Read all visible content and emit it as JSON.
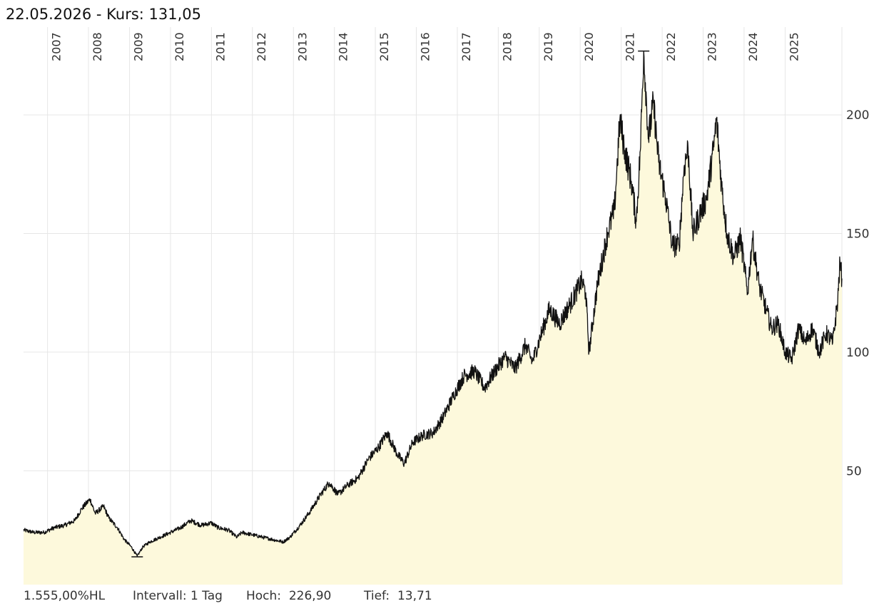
{
  "header": {
    "date": "22.05.2026",
    "kurs_label": " - Kurs: ",
    "kurs_value": "131,05"
  },
  "footer": {
    "performance": "1.555,00%HL",
    "interval": "Intervall: 1 Tag",
    "high_label": "Hoch:",
    "high_value": "226,90",
    "low_label": "Tief:",
    "low_value": "13,71"
  },
  "colors": {
    "line": "#111111",
    "fill": "#fdf9dc",
    "grid": "#e6e6e6",
    "text": "#333333"
  },
  "chart_data": {
    "type": "area",
    "title": "",
    "xlabel": "",
    "ylabel": "",
    "x_tick_labels": [
      "2007",
      "2008",
      "2009",
      "2010",
      "2011",
      "2012",
      "2013",
      "2014",
      "2015",
      "2016",
      "2017",
      "2018",
      "2019",
      "2020",
      "2021",
      "2022",
      "2023",
      "2024",
      "2025"
    ],
    "y_tick_labels": [
      "50",
      "100",
      "150",
      "200"
    ],
    "y_ticks": [
      50,
      100,
      150,
      200
    ],
    "ylim": [
      2,
      237
    ],
    "xlim": [
      "2006-06-01",
      "2026-05-22"
    ],
    "grid": true,
    "high": {
      "date": "2021-07-20",
      "value": 226.9
    },
    "low": {
      "date": "2009-03-10",
      "value": 13.71
    },
    "series": [
      {
        "values": [
          [
            "2006-06-01",
            25
          ],
          [
            "2006-09-01",
            24
          ],
          [
            "2006-12-01",
            24
          ],
          [
            "2007-03-01",
            26
          ],
          [
            "2007-06-01",
            27
          ],
          [
            "2007-09-01",
            29
          ],
          [
            "2007-11-01",
            34
          ],
          [
            "2008-01-15",
            38
          ],
          [
            "2008-03-01",
            32
          ],
          [
            "2008-05-15",
            35
          ],
          [
            "2008-07-01",
            30
          ],
          [
            "2008-09-15",
            26
          ],
          [
            "2008-11-15",
            21
          ],
          [
            "2009-01-15",
            18
          ],
          [
            "2009-03-10",
            14
          ],
          [
            "2009-05-01",
            18
          ],
          [
            "2009-07-01",
            20
          ],
          [
            "2009-10-01",
            22
          ],
          [
            "2010-01-01",
            24
          ],
          [
            "2010-04-01",
            26
          ],
          [
            "2010-07-01",
            29
          ],
          [
            "2010-10-01",
            27
          ],
          [
            "2011-01-01",
            28
          ],
          [
            "2011-03-01",
            26
          ],
          [
            "2011-06-01",
            25
          ],
          [
            "2011-08-15",
            22
          ],
          [
            "2011-10-01",
            24
          ],
          [
            "2012-01-01",
            23
          ],
          [
            "2012-04-01",
            22
          ],
          [
            "2012-07-01",
            21
          ],
          [
            "2012-10-01",
            20
          ],
          [
            "2012-12-01",
            22
          ],
          [
            "2013-03-01",
            27
          ],
          [
            "2013-06-01",
            33
          ],
          [
            "2013-09-01",
            40
          ],
          [
            "2013-11-15",
            45
          ],
          [
            "2014-02-01",
            40
          ],
          [
            "2014-05-01",
            44
          ],
          [
            "2014-08-01",
            47
          ],
          [
            "2014-11-01",
            55
          ],
          [
            "2015-02-01",
            60
          ],
          [
            "2015-04-15",
            66
          ],
          [
            "2015-07-15",
            57
          ],
          [
            "2015-09-15",
            53
          ],
          [
            "2015-12-01",
            62
          ],
          [
            "2016-03-01",
            65
          ],
          [
            "2016-06-01",
            66
          ],
          [
            "2016-09-01",
            73
          ],
          [
            "2016-12-01",
            82
          ],
          [
            "2017-03-01",
            90
          ],
          [
            "2017-06-01",
            92
          ],
          [
            "2017-09-01",
            85
          ],
          [
            "2017-12-01",
            92
          ],
          [
            "2018-03-01",
            98
          ],
          [
            "2018-06-01",
            93
          ],
          [
            "2018-09-01",
            103
          ],
          [
            "2018-11-01",
            96
          ],
          [
            "2019-01-01",
            105
          ],
          [
            "2019-04-01",
            118
          ],
          [
            "2019-07-01",
            112
          ],
          [
            "2019-10-01",
            120
          ],
          [
            "2020-01-15",
            130
          ],
          [
            "2020-02-20",
            125
          ],
          [
            "2020-03-20",
            100
          ],
          [
            "2020-06-01",
            128
          ],
          [
            "2020-09-01",
            150
          ],
          [
            "2020-11-01",
            160
          ],
          [
            "2020-12-20",
            198
          ],
          [
            "2021-02-01",
            185
          ],
          [
            "2021-04-01",
            172
          ],
          [
            "2021-05-15",
            155
          ],
          [
            "2021-06-20",
            185
          ],
          [
            "2021-07-20",
            226.9
          ],
          [
            "2021-09-01",
            190
          ],
          [
            "2021-10-15",
            205
          ],
          [
            "2021-12-01",
            180
          ],
          [
            "2022-02-01",
            165
          ],
          [
            "2022-04-01",
            145
          ],
          [
            "2022-06-01",
            145
          ],
          [
            "2022-07-15",
            178
          ],
          [
            "2022-08-20",
            186
          ],
          [
            "2022-10-01",
            150
          ],
          [
            "2022-12-01",
            158
          ],
          [
            "2023-02-01",
            165
          ],
          [
            "2023-04-01",
            185
          ],
          [
            "2023-05-01",
            198
          ],
          [
            "2023-06-15",
            170
          ],
          [
            "2023-08-01",
            150
          ],
          [
            "2023-10-01",
            140
          ],
          [
            "2023-12-01",
            148
          ],
          [
            "2024-02-01",
            125
          ],
          [
            "2024-03-15",
            148
          ],
          [
            "2024-05-15",
            128
          ],
          [
            "2024-07-15",
            118
          ],
          [
            "2024-09-01",
            110
          ],
          [
            "2024-11-01",
            112
          ],
          [
            "2025-01-01",
            100
          ],
          [
            "2025-03-01",
            97
          ],
          [
            "2025-05-01",
            110
          ],
          [
            "2025-07-01",
            104
          ],
          [
            "2025-09-01",
            110
          ],
          [
            "2025-11-01",
            100
          ],
          [
            "2026-01-01",
            108
          ],
          [
            "2026-03-01",
            104
          ],
          [
            "2026-04-15",
            122
          ],
          [
            "2026-05-05",
            138
          ],
          [
            "2026-05-22",
            131.05
          ]
        ]
      }
    ]
  }
}
